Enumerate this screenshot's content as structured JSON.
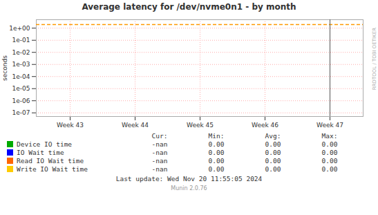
{
  "chart_data": {
    "type": "line",
    "title": "Average latency for /dev/nvme0n1 - by month",
    "ylabel": "seconds",
    "categories": [
      "Week 43",
      "Week 44",
      "Week 45",
      "Week 46",
      "Week 47"
    ],
    "log": "y",
    "grid": true,
    "ylim": [
      5e-08,
      5
    ],
    "yticks": [
      {
        "value": 1e-07,
        "label": "1e-07"
      },
      {
        "value": 1e-06,
        "label": "1e-06"
      },
      {
        "value": 1e-05,
        "label": "1e-05"
      },
      {
        "value": 0.0001,
        "label": "1e-04"
      },
      {
        "value": 0.001,
        "label": "1e-03"
      },
      {
        "value": 0.01,
        "label": "1e-02"
      },
      {
        "value": 0.1,
        "label": "1e-01"
      },
      {
        "value": 1,
        "label": "1e+00"
      }
    ],
    "hlines": [
      {
        "value": 2.0,
        "color": "#ff9900",
        "line_style": "dashed"
      }
    ],
    "vlines": [
      {
        "category": "Week 47",
        "color": "#555555",
        "line_style": "solid"
      }
    ],
    "col_headers": [
      "Cur:",
      "Min:",
      "Avg:",
      "Max:"
    ],
    "series": [
      {
        "name": "Device IO time",
        "color": "#00aa00",
        "values": [
          null,
          null,
          null,
          null,
          null
        ],
        "stats": [
          "-nan",
          "0.00",
          "0.00",
          "0.00"
        ]
      },
      {
        "name": "IO Wait time",
        "color": "#0000ff",
        "values": [
          null,
          null,
          null,
          null,
          null
        ],
        "stats": [
          "-nan",
          "0.00",
          "0.00",
          "0.00"
        ]
      },
      {
        "name": "Read IO Wait time",
        "color": "#ff6600",
        "values": [
          null,
          null,
          null,
          null,
          null
        ],
        "stats": [
          "-nan",
          "0.00",
          "0.00",
          "0.00"
        ]
      },
      {
        "name": "Write IO Wait time",
        "color": "#ffcc00",
        "values": [
          null,
          null,
          null,
          null,
          null
        ],
        "stats": [
          "-nan",
          "0.00",
          "0.00",
          "0.00"
        ]
      }
    ],
    "watermark": "RRDTOOL / TOBI OETIKER",
    "last_update": "Last update: Wed Nov 20 11:55:05 2024",
    "footer": "Munin 2.0.76"
  }
}
